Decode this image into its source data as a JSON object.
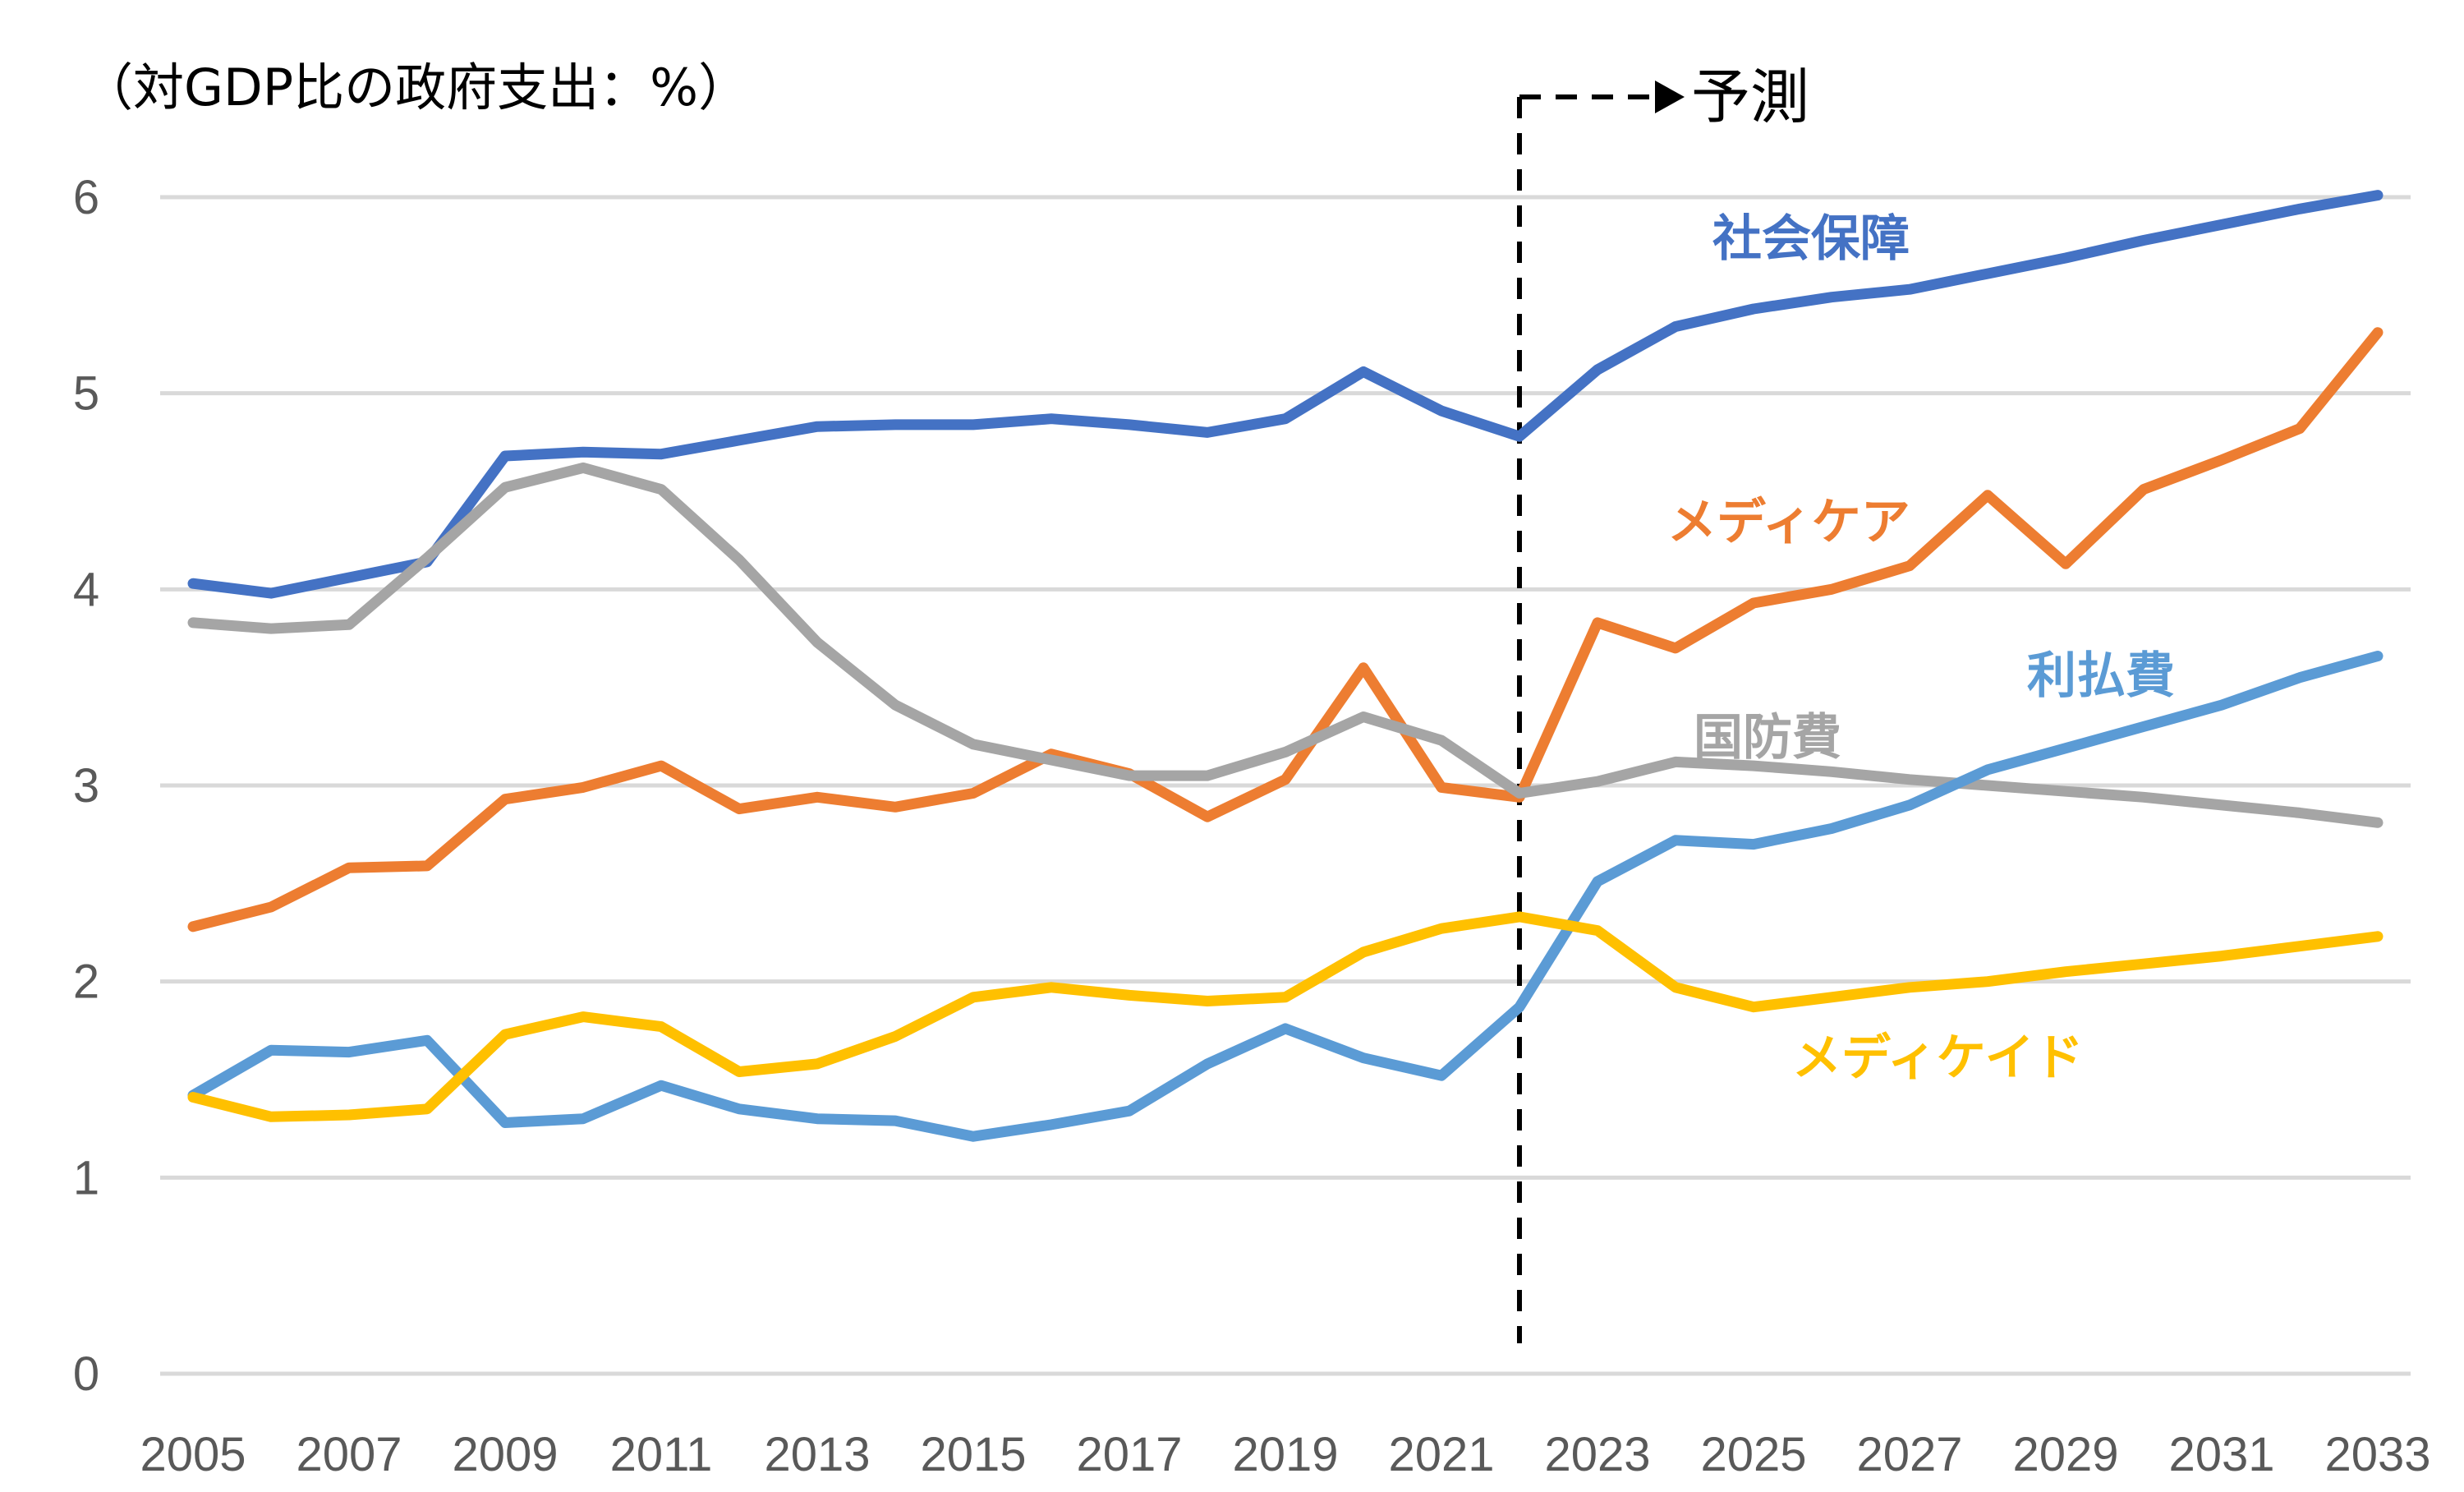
{
  "chart_data": {
    "type": "line",
    "title": "",
    "ylabel": "（対GDP比の政府支出：%）",
    "xlabel": "",
    "forecast_label": "予測",
    "forecast_start": 2022,
    "ylim": [
      0,
      6
    ],
    "yticks": [
      "0",
      "1",
      "2",
      "3",
      "4",
      "5",
      "6"
    ],
    "xticks": [
      "2005",
      "2007",
      "2009",
      "2011",
      "2013",
      "2015",
      "2017",
      "2019",
      "2021",
      "2023",
      "2025",
      "2027",
      "2029",
      "2031",
      "2033"
    ],
    "x": [
      2005,
      2006,
      2007,
      2008,
      2009,
      2010,
      2011,
      2012,
      2013,
      2014,
      2015,
      2016,
      2017,
      2018,
      2019,
      2020,
      2021,
      2022,
      2023,
      2024,
      2025,
      2026,
      2027,
      2028,
      2029,
      2030,
      2031,
      2032,
      2033
    ],
    "grid": true,
    "series": [
      {
        "name": "社会保障",
        "color": "#4472C4",
        "values": [
          4.03,
          3.98,
          4.06,
          4.14,
          4.68,
          4.7,
          4.69,
          4.76,
          4.83,
          4.84,
          4.84,
          4.87,
          4.84,
          4.8,
          4.87,
          5.11,
          4.91,
          4.78,
          5.12,
          5.34,
          5.43,
          5.49,
          5.53,
          5.61,
          5.69,
          5.78,
          5.86,
          5.94,
          6.01
        ]
      },
      {
        "name": "メディケア",
        "color": "#ED7D31",
        "values": [
          2.28,
          2.38,
          2.58,
          2.59,
          2.93,
          2.99,
          3.1,
          2.88,
          2.94,
          2.89,
          2.96,
          3.16,
          3.06,
          2.84,
          3.03,
          3.6,
          2.99,
          2.94,
          3.83,
          3.7,
          3.93,
          4.0,
          4.12,
          4.48,
          4.13,
          4.51,
          4.66,
          4.82,
          5.31
        ]
      },
      {
        "name": "国防費",
        "color": "#A5A5A5",
        "values": [
          3.83,
          3.8,
          3.82,
          4.16,
          4.52,
          4.62,
          4.51,
          4.15,
          3.73,
          3.41,
          3.21,
          3.13,
          3.05,
          3.05,
          3.17,
          3.35,
          3.23,
          2.96,
          3.02,
          3.12,
          3.1,
          3.07,
          3.03,
          3.0,
          2.97,
          2.94,
          2.9,
          2.86,
          2.81
        ]
      },
      {
        "name": "利払費",
        "color": "#5B9BD5",
        "values": [
          1.42,
          1.65,
          1.64,
          1.7,
          1.28,
          1.3,
          1.47,
          1.35,
          1.3,
          1.29,
          1.21,
          1.27,
          1.34,
          1.58,
          1.76,
          1.61,
          1.52,
          1.87,
          2.51,
          2.72,
          2.7,
          2.78,
          2.9,
          3.08,
          3.19,
          3.3,
          3.41,
          3.55,
          3.66
        ]
      },
      {
        "name": "メディケイド",
        "color": "#FFC000",
        "values": [
          1.41,
          1.31,
          1.32,
          1.35,
          1.73,
          1.82,
          1.77,
          1.54,
          1.58,
          1.72,
          1.92,
          1.97,
          1.93,
          1.9,
          1.92,
          2.15,
          2.27,
          2.33,
          2.26,
          1.97,
          1.87,
          1.92,
          1.97,
          2.0,
          2.05,
          2.09,
          2.13,
          2.18,
          2.23
        ]
      }
    ]
  }
}
